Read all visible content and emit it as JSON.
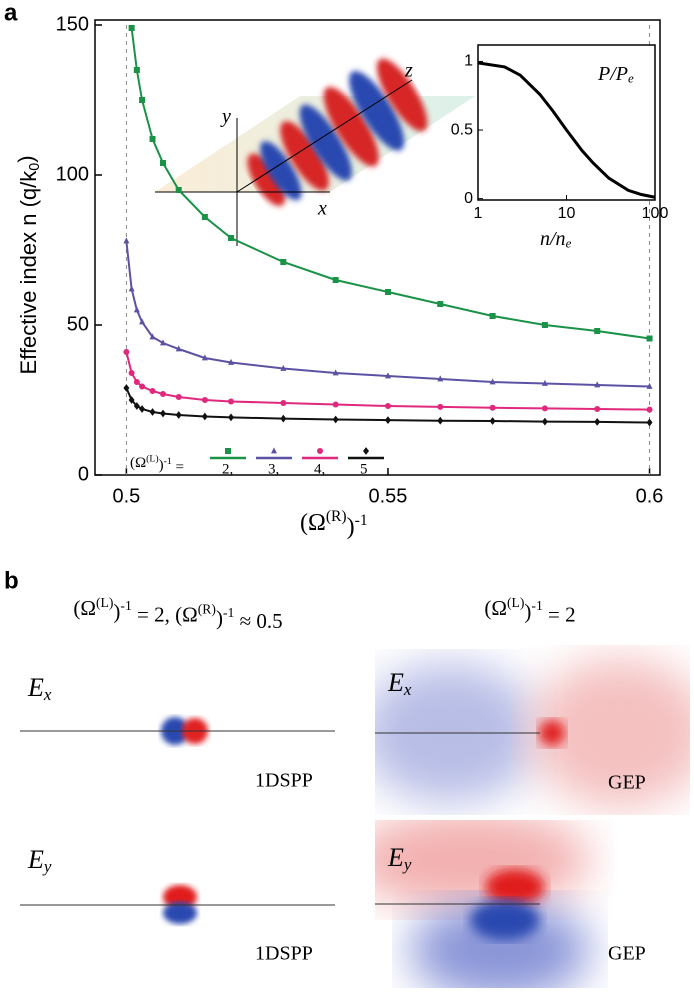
{
  "panel_labels": [
    "a",
    "b"
  ],
  "chart_data": [
    {
      "type": "line",
      "x_label": [
        "(Ω",
        "(R)",
        ")",
        "-1"
      ],
      "y_label": [
        "Effective index n (q/k",
        "0",
        ")"
      ],
      "legend_title": [
        "(Ω",
        "(L)",
        ")",
        "-1",
        " ="
      ],
      "x": [
        0.5,
        0.501,
        0.502,
        0.503,
        0.505,
        0.507,
        0.51,
        0.515,
        0.52,
        0.53,
        0.54,
        0.55,
        0.56,
        0.57,
        0.58,
        0.59,
        0.6
      ],
      "series": [
        {
          "name": "2,",
          "color": "#1a9247",
          "marker": "square",
          "values": [
            null,
            149,
            135,
            125,
            112,
            104,
            95,
            86,
            79,
            71,
            65,
            61,
            57,
            53,
            50,
            48,
            45.5
          ]
        },
        {
          "name": "3,",
          "color": "#5b52a3",
          "marker": "triangle",
          "values": [
            78,
            62,
            55,
            51,
            46,
            44,
            42,
            39,
            37.5,
            35.5,
            34,
            33,
            32,
            31,
            30.5,
            30,
            29.5
          ]
        },
        {
          "name": "4,",
          "color": "#e0287d",
          "marker": "circle",
          "values": [
            41,
            34,
            31,
            29.5,
            28,
            27,
            26,
            25,
            24.5,
            24,
            23.5,
            23,
            22.7,
            22.4,
            22.2,
            22,
            21.8
          ]
        },
        {
          "name": "5",
          "color": "#111111",
          "marker": "diamond",
          "values": [
            29,
            25,
            23,
            22,
            21,
            20.5,
            20,
            19.5,
            19.2,
            18.8,
            18.5,
            18.3,
            18.1,
            18,
            17.8,
            17.7,
            17.5
          ]
        }
      ],
      "xlim": [
        0.494,
        0.602
      ],
      "ylim": [
        0,
        150
      ],
      "xticks": [
        0.5,
        0.55,
        0.6
      ],
      "yticks": [
        0,
        50,
        100,
        150
      ]
    },
    {
      "type": "line",
      "title": [
        "P/P",
        "e"
      ],
      "x_label": [
        "n/n",
        "e"
      ],
      "xscale": "log",
      "x": [
        1,
        2,
        3,
        5,
        7,
        10,
        15,
        20,
        30,
        50,
        70,
        100
      ],
      "series": [
        {
          "color": "#000000",
          "values": [
            0.99,
            0.96,
            0.9,
            0.76,
            0.64,
            0.5,
            0.35,
            0.26,
            0.15,
            0.06,
            0.03,
            0.01
          ]
        }
      ],
      "xlim": [
        1,
        100
      ],
      "ylim": [
        -0.01,
        1.12
      ],
      "xticks": [
        1,
        10,
        100
      ],
      "yticks": [
        0,
        0.5,
        1
      ]
    }
  ],
  "inset_3d": {
    "axes": [
      "x",
      "y",
      "z"
    ]
  },
  "panel_b": {
    "titles": [
      [
        "(Ω",
        "(L)",
        ")",
        "-1",
        " = 2, (Ω",
        "(R)",
        ")",
        "-1",
        " ≈ 0.5"
      ],
      [
        "(Ω",
        "(L)",
        ")",
        "-1",
        " = 2"
      ]
    ],
    "fields": [
      {
        "component": [
          "E",
          "x"
        ],
        "label": "1DSPP"
      },
      {
        "component": [
          "E",
          "x"
        ],
        "label": "GEP"
      },
      {
        "component": [
          "E",
          "y"
        ],
        "label": "1DSPP"
      },
      {
        "component": [
          "E",
          "y"
        ],
        "label": "GEP"
      }
    ]
  }
}
